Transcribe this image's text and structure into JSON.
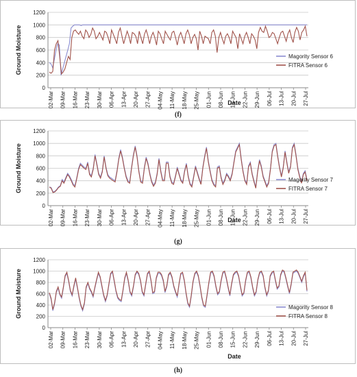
{
  "chart_data": [
    {
      "type": "line",
      "caption": "(f)",
      "xlabel": "Date",
      "ylabel": "Ground Moisture",
      "ylim": [
        0,
        1200
      ],
      "yticks": [
        0,
        200,
        400,
        600,
        800,
        1000,
        1200
      ],
      "xtick_labels": [
        "02-Mar",
        "09-Mar",
        "16-Mar",
        "23-Mar",
        "30-Mar",
        "06-Apr",
        "13-Apr",
        "20-Apr",
        "27-Apr",
        "04-May",
        "11-May",
        "18-May",
        "25-May",
        "01-Jun",
        "08-Jun",
        "15-Jun",
        "22-Jun",
        "29-Jun",
        "06-Jul",
        "13-Jul",
        "20-Jul",
        "27-Jul"
      ],
      "legend_position": "right",
      "series": [
        {
          "name": "Magority Sensor 6",
          "color": "#8a8cd0",
          "values": [
            400,
            380,
            320,
            450,
            600,
            700,
            680,
            200,
            300,
            400,
            500,
            600,
            700,
            950,
            980,
            1000,
            1000,
            1000,
            1000,
            990,
            1000,
            1000,
            1000,
            1000,
            1000,
            1000,
            1000,
            1000,
            1000,
            1000,
            1000,
            1000,
            1000,
            1000,
            1000,
            1000,
            1000,
            1000,
            1000,
            1000,
            1000,
            1000,
            1000,
            1000,
            1000,
            1000,
            1000,
            1000,
            1000,
            1000,
            1000,
            1000,
            1000,
            1000,
            1000,
            1000,
            1000,
            1000,
            1000,
            1000,
            1000,
            1000,
            1000,
            1000,
            1000,
            1000,
            1000,
            1000,
            1000,
            1000,
            1000,
            1000,
            1000,
            1000,
            1000,
            1000,
            1000,
            1000,
            1000,
            1000,
            1000,
            1000,
            1000,
            1000,
            1000,
            1000,
            1000,
            1000,
            1000,
            1000,
            1000,
            1000,
            1000,
            1000,
            1000,
            1000,
            1000,
            1000,
            1000,
            1000,
            1000,
            1000,
            1000,
            1000,
            1000,
            1000,
            1000,
            1000,
            1000,
            1000,
            1000,
            1000,
            1000,
            1000,
            1000,
            1000,
            1000,
            1000,
            1000,
            1000,
            1000,
            1000,
            1000,
            1000,
            1000,
            1000,
            1000,
            1000,
            1000,
            1000,
            1000,
            1000,
            1000,
            1000,
            1000,
            1000,
            1000,
            1000,
            1000,
            1000,
            1000,
            1000,
            1000,
            1000,
            1000,
            1000,
            1000,
            1000,
            1000,
            1000,
            1000,
            1000,
            1000,
            1000,
            1000
          ]
        },
        {
          "name": "FITRA Sensor 6",
          "color": "#a0524a",
          "values": [
            250,
            230,
            260,
            600,
            700,
            750,
            500,
            220,
            250,
            300,
            400,
            500,
            450,
            800,
            900,
            920,
            880,
            850,
            900,
            820,
            780,
            920,
            880,
            800,
            850,
            950,
            900,
            780,
            820,
            880,
            820,
            760,
            900,
            880,
            800,
            700,
            920,
            850,
            780,
            700,
            880,
            950,
            820,
            700,
            800,
            900,
            820,
            700,
            880,
            860,
            820,
            700,
            900,
            800,
            700,
            850,
            920,
            830,
            700,
            820,
            880,
            800,
            680,
            900,
            860,
            780,
            700,
            900,
            850,
            800,
            760,
            880,
            900,
            800,
            680,
            820,
            880,
            800,
            700,
            860,
            920,
            840,
            700,
            800,
            850,
            780,
            600,
            900,
            820,
            700,
            820,
            800,
            780,
            700,
            880,
            920,
            820,
            560,
            800,
            880,
            780,
            700,
            820,
            860,
            800,
            700,
            900,
            850,
            800,
            620,
            860,
            780,
            700,
            820,
            880,
            800,
            700,
            860,
            820,
            760,
            620,
            880,
            960,
            900,
            880,
            980,
            900,
            800,
            820,
            880,
            860,
            780,
            700,
            800,
            880,
            900,
            820,
            740,
            860,
            920,
            800,
            720,
            880,
            960,
            900,
            760,
            880,
            920,
            980,
            820
          ]
        }
      ]
    },
    {
      "type": "line",
      "caption": "(g)",
      "xlabel": "Date",
      "ylabel": "Ground Moisture",
      "ylim": [
        0,
        1200
      ],
      "yticks": [
        0,
        200,
        400,
        600,
        800,
        1000,
        1200
      ],
      "xtick_labels": [
        "02-Mar",
        "09-Mar",
        "16-Mar",
        "23-Mar",
        "30-Mar",
        "06-Apr",
        "13-Apr",
        "20-Apr",
        "27-Apr",
        "04-May",
        "11-May",
        "18-May",
        "25-May",
        "01-Jun",
        "08-Jun",
        "15-Jun",
        "22-Jun",
        "29-Jun",
        "06-Jul",
        "13-Jul",
        "20-Jul",
        "27-Jul"
      ],
      "legend_position": "right",
      "series": [
        {
          "name": "Magority Sensor 7",
          "color": "#8a8cd0",
          "values": [
            300,
            290,
            220,
            230,
            260,
            300,
            320,
            420,
            380,
            450,
            520,
            480,
            420,
            350,
            320,
            450,
            600,
            680,
            650,
            620,
            600,
            700,
            520,
            480,
            600,
            820,
            680,
            520,
            460,
            560,
            800,
            620,
            500,
            460,
            440,
            420,
            400,
            560,
            760,
            900,
            780,
            620,
            480,
            400,
            380,
            620,
            820,
            960,
            800,
            560,
            400,
            380,
            620,
            780,
            680,
            520,
            400,
            330,
            380,
            520,
            760,
            560,
            420,
            420,
            700,
            700,
            480,
            380,
            360,
            480,
            620,
            520,
            420,
            380,
            560,
            680,
            480,
            360,
            320,
            480,
            640,
            540,
            440,
            360,
            620,
            800,
            940,
            720,
            560,
            420,
            350,
            320,
            620,
            640,
            460,
            360,
            420,
            520,
            480,
            420,
            520,
            700,
            880,
            940,
            1000,
            760,
            560,
            420,
            360,
            640,
            700,
            520,
            400,
            300,
            560,
            740,
            640,
            480,
            400,
            320,
            380,
            600,
            880,
            980,
            1000,
            800,
            620,
            480,
            620,
            880,
            700,
            540,
            640,
            940,
            1000,
            820,
            600,
            480,
            380,
            520,
            560,
            420
          ]
        },
        {
          "name": "FITRA Sensor 7",
          "color": "#a0524a",
          "values": [
            300,
            280,
            210,
            220,
            250,
            290,
            310,
            400,
            360,
            430,
            500,
            460,
            400,
            330,
            300,
            430,
            580,
            660,
            630,
            600,
            580,
            680,
            500,
            460,
            580,
            800,
            660,
            500,
            440,
            540,
            780,
            600,
            480,
            440,
            420,
            400,
            380,
            540,
            740,
            880,
            760,
            600,
            460,
            380,
            360,
            600,
            800,
            940,
            780,
            540,
            380,
            360,
            600,
            760,
            660,
            500,
            380,
            310,
            360,
            500,
            740,
            540,
            400,
            400,
            680,
            680,
            460,
            360,
            340,
            460,
            600,
            500,
            400,
            360,
            540,
            660,
            460,
            340,
            300,
            460,
            620,
            520,
            420,
            340,
            600,
            780,
            920,
            700,
            540,
            400,
            330,
            300,
            600,
            620,
            440,
            340,
            400,
            500,
            460,
            400,
            500,
            680,
            860,
            920,
            980,
            740,
            540,
            400,
            340,
            620,
            680,
            500,
            380,
            280,
            540,
            720,
            620,
            460,
            380,
            300,
            360,
            580,
            860,
            960,
            980,
            780,
            600,
            460,
            600,
            860,
            680,
            520,
            620,
            920,
            980,
            800,
            580,
            460,
            360,
            500,
            540,
            400
          ]
        }
      ]
    },
    {
      "type": "line",
      "caption": "(h)",
      "xlabel": "Date",
      "ylabel": "Ground Moisture",
      "ylim": [
        0,
        1200
      ],
      "yticks": [
        0,
        200,
        400,
        600,
        800,
        1000,
        1200
      ],
      "xtick_labels": [
        "02-Mar",
        "09-Mar",
        "16-Mar",
        "23-Mar",
        "30-Mar",
        "06-Apr",
        "13-Apr",
        "20-Apr",
        "27-Apr",
        "04-May",
        "11-May",
        "18-May",
        "25-May",
        "01-Jun",
        "08-Jun",
        "15-Jun",
        "22-Jun",
        "29-Jun",
        "06-Jul",
        "13-Jul",
        "20-Jul",
        "27-Jul"
      ],
      "legend_position": "right",
      "series": [
        {
          "name": "Magority Sensor 8",
          "color": "#8a8cd0",
          "values": [
            600,
            500,
            300,
            420,
            620,
            700,
            580,
            520,
            700,
            900,
            960,
            820,
            640,
            560,
            720,
            860,
            700,
            520,
            380,
            300,
            420,
            700,
            780,
            680,
            620,
            540,
            700,
            840,
            960,
            880,
            720,
            560,
            460,
            560,
            760,
            940,
            980,
            820,
            640,
            520,
            480,
            460,
            640,
            860,
            960,
            820,
            620,
            560,
            720,
            920,
            980,
            940,
            820,
            620,
            560,
            760,
            940,
            980,
            820,
            600,
            620,
            860,
            960,
            960,
            920,
            820,
            620,
            720,
            920,
            960,
            880,
            720,
            620,
            540,
            760,
            940,
            960,
            820,
            600,
            420,
            360,
            560,
            800,
            940,
            980,
            900,
            720,
            520,
            380,
            360,
            560,
            780,
            960,
            980,
            900,
            720,
            580,
            620,
            820,
            960,
            980,
            860,
            700,
            560,
            760,
            920,
            960,
            980,
            900,
            720,
            560,
            600,
            820,
            960,
            980,
            880,
            700,
            560,
            620,
            840,
            960,
            980,
            900,
            700,
            560,
            640,
            900,
            960,
            980,
            820,
            680,
            720,
            920,
            1000,
            980,
            860,
            720,
            600,
            760,
            960,
            980,
            1000,
            960,
            880,
            800,
            900,
            960,
            640
          ]
        },
        {
          "name": "FITRA Sensor 8",
          "color": "#a0524a",
          "values": [
            620,
            520,
            320,
            440,
            640,
            720,
            600,
            540,
            720,
            920,
            980,
            840,
            660,
            580,
            740,
            880,
            720,
            540,
            400,
            320,
            440,
            720,
            800,
            700,
            640,
            560,
            720,
            860,
            980,
            900,
            740,
            580,
            480,
            580,
            780,
            960,
            1000,
            840,
            660,
            540,
            500,
            480,
            660,
            880,
            980,
            840,
            640,
            580,
            740,
            940,
            1000,
            960,
            840,
            640,
            580,
            780,
            960,
            1000,
            840,
            620,
            640,
            880,
            980,
            980,
            940,
            840,
            640,
            740,
            940,
            980,
            900,
            740,
            640,
            560,
            780,
            960,
            980,
            840,
            620,
            440,
            380,
            580,
            820,
            960,
            1000,
            920,
            740,
            540,
            400,
            380,
            580,
            800,
            980,
            1000,
            920,
            740,
            600,
            640,
            840,
            980,
            1000,
            880,
            720,
            580,
            780,
            940,
            980,
            1000,
            920,
            740,
            580,
            620,
            840,
            980,
            1000,
            900,
            720,
            580,
            640,
            860,
            980,
            1000,
            920,
            720,
            580,
            660,
            920,
            980,
            1000,
            840,
            700,
            740,
            940,
            1020,
            1000,
            880,
            740,
            620,
            780,
            980,
            1000,
            1020,
            980,
            900,
            820,
            920,
            980,
            660
          ]
        }
      ]
    }
  ]
}
